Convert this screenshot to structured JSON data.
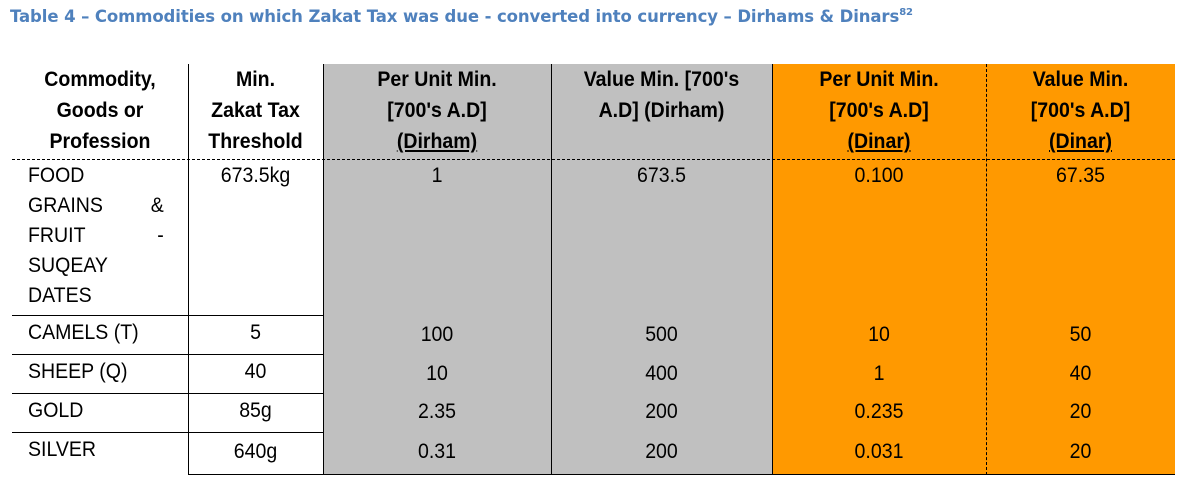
{
  "title": {
    "text": "Table 4 – Commodities on which Zakat Tax was due - converted into currency – Dirhams & Dinars",
    "footnote": "82"
  },
  "colors": {
    "title": "#4f81bd",
    "dirham_bg": "#c0c0c0",
    "dinar_bg": "#ff9900"
  },
  "header": {
    "commodity": [
      "Commodity,",
      "Goods or",
      "Profession"
    ],
    "threshold": [
      "Min.",
      "Zakat Tax",
      "Threshold"
    ],
    "dirham_unit": [
      "Per Unit Min.",
      "[700's A.D]",
      "(Dirham)"
    ],
    "dirham_value": [
      "Value Min. [700's",
      "A.D] (Dirham)"
    ],
    "dinar_unit": [
      "Per Unit Min.",
      "[700's A.D]",
      "(Dinar)"
    ],
    "dinar_value": [
      "Value Min.",
      "[700's A.D]",
      "(Dinar)"
    ]
  },
  "rows": [
    {
      "commodity_lines": [
        [
          "FOOD",
          ""
        ],
        [
          "GRAINS",
          "&"
        ],
        [
          "FRUIT",
          "-"
        ],
        [
          "SUQEAY",
          ""
        ],
        [
          "DATES",
          ""
        ]
      ],
      "threshold": "673.5kg",
      "dirham_unit": "1",
      "dirham_value": "673.5",
      "dinar_unit": "0.100",
      "dinar_value": "67.35"
    },
    {
      "commodity": "CAMELS (T)",
      "threshold": "5",
      "dirham_unit": "100",
      "dirham_value": "500",
      "dinar_unit": "10",
      "dinar_value": "50"
    },
    {
      "commodity": "SHEEP (Q)",
      "threshold": "40",
      "dirham_unit": "10",
      "dirham_value": "400",
      "dinar_unit": "1",
      "dinar_value": "40"
    },
    {
      "commodity": "GOLD",
      "threshold": "85g",
      "dirham_unit": "2.35",
      "dirham_value": "200",
      "dinar_unit": "0.235",
      "dinar_value": "20"
    },
    {
      "commodity": "SILVER",
      "threshold": "640g",
      "dirham_unit": "0.31",
      "dirham_value": "200",
      "dinar_unit": "0.031",
      "dinar_value": "20"
    }
  ]
}
